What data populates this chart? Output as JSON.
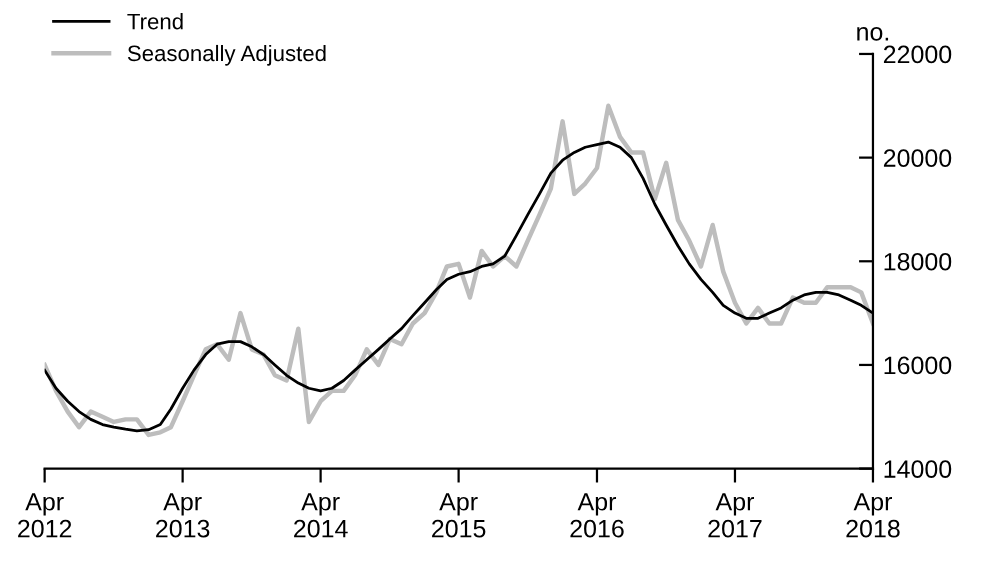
{
  "chart_data": {
    "type": "line",
    "ylabel": "no.",
    "x": [
      "2012-04",
      "2012-05",
      "2012-06",
      "2012-07",
      "2012-08",
      "2012-09",
      "2012-10",
      "2012-11",
      "2012-12",
      "2013-01",
      "2013-02",
      "2013-03",
      "2013-04",
      "2013-05",
      "2013-06",
      "2013-07",
      "2013-08",
      "2013-09",
      "2013-10",
      "2013-11",
      "2013-12",
      "2014-01",
      "2014-02",
      "2014-03",
      "2014-04",
      "2014-05",
      "2014-06",
      "2014-07",
      "2014-08",
      "2014-09",
      "2014-10",
      "2014-11",
      "2014-12",
      "2015-01",
      "2015-02",
      "2015-03",
      "2015-04",
      "2015-05",
      "2015-06",
      "2015-07",
      "2015-08",
      "2015-09",
      "2015-10",
      "2015-11",
      "2015-12",
      "2016-01",
      "2016-02",
      "2016-03",
      "2016-04",
      "2016-05",
      "2016-06",
      "2016-07",
      "2016-08",
      "2016-09",
      "2016-10",
      "2016-11",
      "2016-12",
      "2017-01",
      "2017-02",
      "2017-03",
      "2017-04",
      "2017-05",
      "2017-06",
      "2017-07",
      "2017-08",
      "2017-09",
      "2017-10",
      "2017-11",
      "2017-12",
      "2018-01",
      "2018-02",
      "2018-03",
      "2018-04"
    ],
    "series": [
      {
        "name": "Trend",
        "color": "#000000",
        "values": [
          15900,
          15550,
          15300,
          15100,
          14950,
          14850,
          14800,
          14760,
          14730,
          14750,
          14850,
          15150,
          15550,
          15900,
          16200,
          16400,
          16450,
          16450,
          16350,
          16200,
          16000,
          15800,
          15650,
          15550,
          15500,
          15550,
          15700,
          15900,
          16100,
          16300,
          16500,
          16700,
          16950,
          17200,
          17450,
          17650,
          17750,
          17800,
          17900,
          17950,
          18100,
          18500,
          18900,
          19300,
          19700,
          19950,
          20100,
          20200,
          20250,
          20300,
          20200,
          20000,
          19600,
          19100,
          18700,
          18300,
          17950,
          17650,
          17400,
          17150,
          17000,
          16900,
          16900,
          17000,
          17100,
          17250,
          17350,
          17400,
          17400,
          17350,
          17250,
          17150,
          17000
        ]
      },
      {
        "name": "Seasonally Adjusted",
        "color": "#bdbdbd",
        "values": [
          16000,
          15500,
          15100,
          14800,
          15100,
          15000,
          14900,
          14950,
          14950,
          14650,
          14700,
          14800,
          15300,
          15800,
          16300,
          16400,
          16100,
          17000,
          16300,
          16200,
          15800,
          15700,
          16700,
          14900,
          15300,
          15500,
          15500,
          15800,
          16300,
          16000,
          16500,
          16400,
          16800,
          17000,
          17400,
          17900,
          17950,
          17300,
          18200,
          17900,
          18100,
          17900,
          18400,
          18900,
          19400,
          20700,
          19300,
          19500,
          19800,
          21000,
          20400,
          20100,
          20100,
          19200,
          19900,
          18800,
          18400,
          17900,
          18700,
          17800,
          17200,
          16800,
          17100,
          16800,
          16800,
          17300,
          17200,
          17200,
          17500,
          17500,
          17500,
          17400,
          16800
        ]
      }
    ],
    "xlim": [
      "2012-04",
      "2018-04"
    ],
    "xticks": [
      {
        "value": "2012-04",
        "label": "Apr\n2012"
      },
      {
        "value": "2013-04",
        "label": "Apr\n2013"
      },
      {
        "value": "2014-04",
        "label": "Apr\n2014"
      },
      {
        "value": "2015-04",
        "label": "Apr\n2015"
      },
      {
        "value": "2016-04",
        "label": "Apr\n2016"
      },
      {
        "value": "2017-04",
        "label": "Apr\n2017"
      },
      {
        "value": "2018-04",
        "label": "Apr\n2018"
      }
    ],
    "ylim": [
      14000,
      22000
    ],
    "yticks": [
      14000,
      16000,
      18000,
      20000,
      22000
    ],
    "grid": false,
    "legend": "top left",
    "marker": "none",
    "line_style": "solid"
  }
}
